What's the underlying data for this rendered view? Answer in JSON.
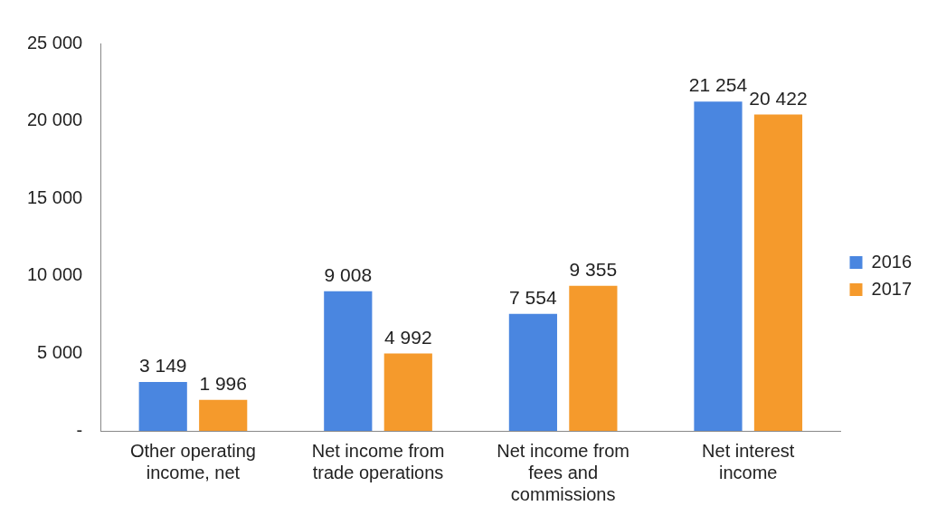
{
  "chart_data": {
    "type": "bar",
    "categories": [
      "Other operating income, net",
      "Net income from trade operations",
      "Net income from fees and commissions",
      "Net interest income"
    ],
    "series": [
      {
        "name": "2016",
        "color": "#4a86e0",
        "values": [
          3149,
          9008,
          7554,
          21254
        ],
        "value_labels": [
          "3 149",
          "9 008",
          "7 554",
          "21 254"
        ]
      },
      {
        "name": "2017",
        "color": "#f59a2c",
        "values": [
          1996,
          4992,
          9355,
          20422
        ],
        "value_labels": [
          "1 996",
          "4 992",
          "9 355",
          "20 422"
        ]
      }
    ],
    "ylim": [
      0,
      25000
    ],
    "yticks": [
      {
        "value": 0,
        "label": "-"
      },
      {
        "value": 5000,
        "label": "5 000"
      },
      {
        "value": 10000,
        "label": "10 000"
      },
      {
        "value": 15000,
        "label": "15 000"
      },
      {
        "value": 20000,
        "label": "20 000"
      },
      {
        "value": 25000,
        "label": "25 000"
      }
    ],
    "grid": false,
    "legend": "right"
  }
}
